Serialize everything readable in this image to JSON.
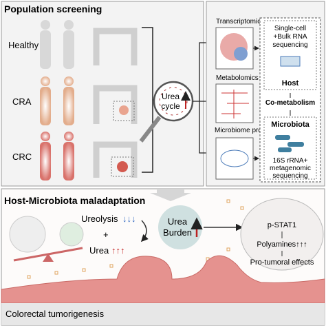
{
  "top_panel": {
    "title": "Population screening",
    "groups": [
      "Healthy",
      "CRA",
      "CRC"
    ],
    "magnifier": [
      "Urea",
      "cycle"
    ]
  },
  "omics": {
    "items": [
      "Transcriptomics",
      "Metabolomics",
      "Microbiome profiling"
    ],
    "host_method": [
      "Single-cell",
      "+Bulk RNA",
      "sequencing"
    ],
    "host": "Host",
    "co_metabolism": "Co-metabolism",
    "microbiota": "Microbiota",
    "microbiota_method": [
      "16S rRNA+",
      "metagenomic",
      "sequencing"
    ]
  },
  "bottom_panel": {
    "title": "Host-Microbiota maladaptation",
    "ureolysis": "Ureolysis",
    "ureolysis_arrows": "↓↓↓",
    "plus": "+",
    "urea": "Urea",
    "urea_arrows": "↑↑↑",
    "burden": [
      "Urea",
      "Burden"
    ],
    "pathway": [
      "p-STAT1",
      "Polyamines↑↑↑",
      "Pro-tumoral effects"
    ],
    "footer": "Colorectal tumorigenesis"
  }
}
